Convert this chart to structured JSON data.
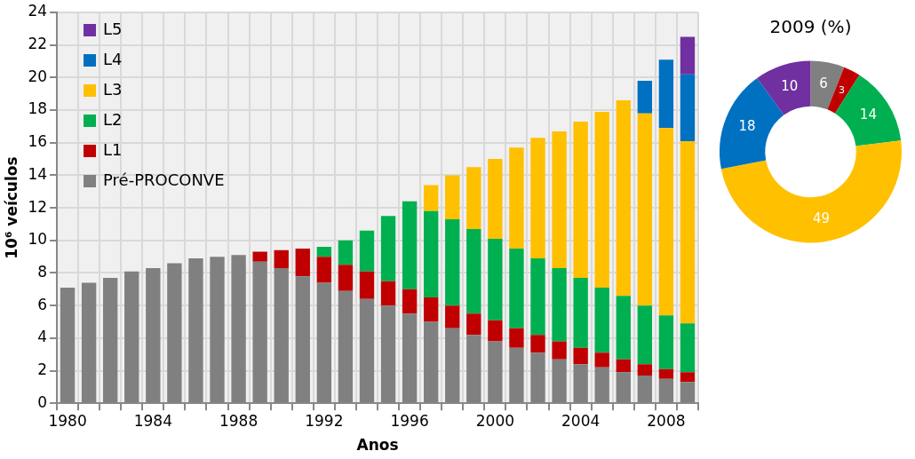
{
  "chart_data": [
    {
      "type": "bar",
      "stacked": true,
      "xlabel": "Anos",
      "ylabel": "10⁶ veículos",
      "categories": [
        "1980",
        null,
        null,
        null,
        "1984",
        null,
        null,
        null,
        "1988",
        null,
        null,
        null,
        "1992",
        null,
        null,
        null,
        "1996",
        null,
        null,
        null,
        "2000",
        null,
        null,
        null,
        "2004",
        null,
        null,
        null,
        "2008",
        null
      ],
      "series": [
        {
          "name": "Pré-PROCONVE",
          "color": "#808080",
          "values": [
            7.1,
            7.4,
            7.7,
            8.1,
            8.3,
            8.6,
            8.9,
            9.0,
            9.1,
            8.7,
            8.3,
            7.8,
            7.4,
            6.9,
            6.4,
            6.0,
            5.5,
            5.0,
            4.6,
            4.2,
            3.8,
            3.4,
            3.1,
            2.7,
            2.4,
            2.2,
            1.9,
            1.7,
            1.5,
            1.3
          ]
        },
        {
          "name": "L1",
          "color": "#c00000",
          "values": [
            null,
            null,
            null,
            null,
            null,
            null,
            null,
            null,
            null,
            0.6,
            1.1,
            1.7,
            1.6,
            1.6,
            1.7,
            1.5,
            1.5,
            1.5,
            1.4,
            1.3,
            1.3,
            1.2,
            1.1,
            1.1,
            1.0,
            0.9,
            0.8,
            0.7,
            0.6,
            0.6
          ]
        },
        {
          "name": "L2",
          "color": "#00b050",
          "values": [
            null,
            null,
            null,
            null,
            null,
            null,
            null,
            null,
            null,
            null,
            null,
            null,
            0.6,
            1.5,
            2.5,
            4.0,
            5.4,
            5.3,
            5.3,
            5.2,
            5.0,
            4.9,
            4.7,
            4.5,
            4.3,
            4.0,
            3.9,
            3.6,
            3.3,
            3.0
          ]
        },
        {
          "name": "L3",
          "color": "#ffc000",
          "values": [
            null,
            null,
            null,
            null,
            null,
            null,
            null,
            null,
            null,
            null,
            null,
            null,
            null,
            null,
            null,
            null,
            null,
            1.6,
            2.7,
            3.8,
            4.9,
            6.2,
            7.4,
            8.4,
            9.6,
            10.8,
            12.0,
            11.8,
            11.5,
            11.2
          ]
        },
        {
          "name": "L4",
          "color": "#0070c0",
          "values": [
            null,
            null,
            null,
            null,
            null,
            null,
            null,
            null,
            null,
            null,
            null,
            null,
            null,
            null,
            null,
            null,
            null,
            null,
            null,
            null,
            null,
            null,
            null,
            null,
            null,
            null,
            null,
            2.0,
            4.2,
            4.1
          ]
        },
        {
          "name": "L5",
          "color": "#7030a0",
          "values": [
            null,
            null,
            null,
            null,
            null,
            null,
            null,
            null,
            null,
            null,
            null,
            null,
            null,
            null,
            null,
            null,
            null,
            null,
            null,
            null,
            null,
            null,
            null,
            null,
            null,
            null,
            null,
            null,
            null,
            2.3
          ]
        }
      ],
      "ylim": [
        0,
        24
      ],
      "yticks": [
        0,
        2,
        4,
        6,
        8,
        10,
        12,
        14,
        16,
        18,
        20,
        22,
        24
      ],
      "grid": true,
      "legend": "top left"
    },
    {
      "type": "donut",
      "title": "2009 (%)",
      "categories": [
        null,
        null,
        null,
        null,
        null,
        null
      ],
      "values": [
        6,
        3,
        14,
        49,
        18,
        10
      ],
      "colors": [
        "#808080",
        "#c00000",
        "#00b050",
        "#ffc000",
        "#0070c0",
        "#7030a0"
      ],
      "data_labels": true
    }
  ]
}
